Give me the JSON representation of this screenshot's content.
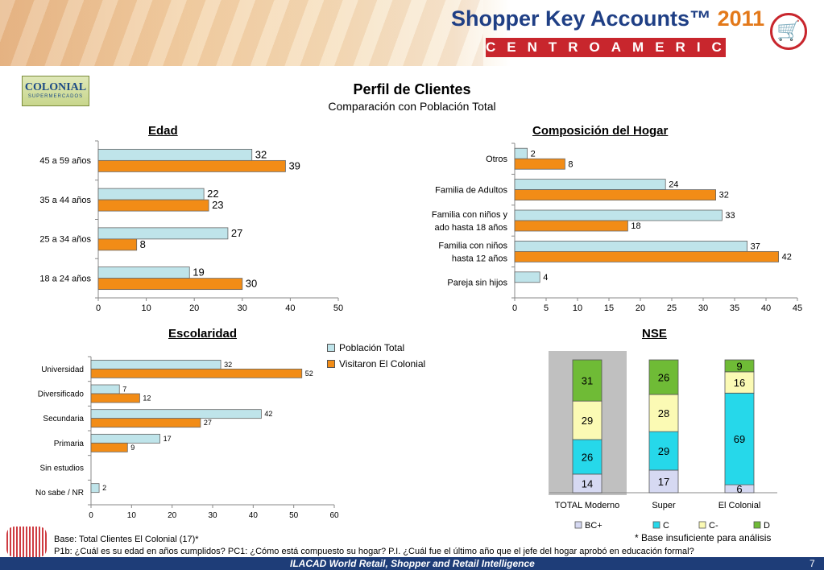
{
  "header": {
    "brand": "Shopper Key Accounts™",
    "year": "2011",
    "subtitle": "CENTROAMERICA"
  },
  "logo": {
    "name": "COLONIAL",
    "tagline": "SUPERMERCADOS"
  },
  "page": {
    "title": "Perfil de Clientes",
    "subtitle": "Comparación con Población Total"
  },
  "legend": {
    "series": [
      "Población Total",
      "Visitaron El Colonial"
    ]
  },
  "colors": {
    "poblacion": "#bfe4ea",
    "visitaron": "#f28c16",
    "bcplus": "#d6d9f2",
    "c": "#26d8ea",
    "cminus": "#fbfab4",
    "d": "#6fbb36"
  },
  "chart_data": [
    {
      "id": "edad",
      "type": "bar",
      "orientation": "horizontal",
      "title": "Edad",
      "categories": [
        "45 a 59 años",
        "35 a 44 años",
        "25 a 34 años",
        "18 a 24 años"
      ],
      "series": [
        {
          "name": "Población Total",
          "values": [
            32,
            22,
            27,
            19
          ]
        },
        {
          "name": "Visitaron El Colonial",
          "values": [
            39,
            23,
            8,
            30
          ]
        }
      ],
      "xlim": [
        0,
        50
      ],
      "ticks": [
        "0",
        "10",
        "20",
        "30",
        "40",
        "50"
      ]
    },
    {
      "id": "hogar",
      "type": "bar",
      "orientation": "horizontal",
      "title": "Composición del Hogar",
      "categories": [
        [
          "Otros"
        ],
        [
          "Familia de Adultos"
        ],
        [
          "Familia con niños y",
          "ado hasta 18 años"
        ],
        [
          "Familia con niños",
          "hasta 12 años"
        ],
        [
          "Pareja sin hijos"
        ]
      ],
      "series": [
        {
          "name": "Población Total",
          "values": [
            2,
            24,
            33,
            37,
            4
          ]
        },
        {
          "name": "Visitaron El Colonial",
          "values": [
            8,
            32,
            18,
            42,
            null
          ]
        }
      ],
      "xlim": [
        0,
        45
      ],
      "ticks": [
        "0",
        "5",
        "10",
        "15",
        "20",
        "25",
        "30",
        "35",
        "40",
        "45"
      ]
    },
    {
      "id": "escolaridad",
      "type": "bar",
      "orientation": "horizontal",
      "title": "Escolaridad",
      "categories": [
        "Universidad",
        "Diversificado",
        "Secundaria",
        "Primaria",
        "Sin estudios",
        "No sabe / NR"
      ],
      "series": [
        {
          "name": "Población Total",
          "values": [
            32,
            7,
            42,
            17,
            null,
            2
          ]
        },
        {
          "name": "Visitaron El Colonial",
          "values": [
            52,
            12,
            27,
            9,
            null,
            null
          ]
        }
      ],
      "xlim": [
        0,
        60
      ],
      "ticks": [
        "0",
        "10",
        "20",
        "30",
        "40",
        "50",
        "60"
      ]
    },
    {
      "id": "nse",
      "type": "bar",
      "stacked": true,
      "title": "NSE",
      "categories": [
        "TOTAL Moderno",
        "Super",
        "El Colonial"
      ],
      "series": [
        {
          "name": "BC+",
          "values": [
            14,
            17,
            6
          ]
        },
        {
          "name": "C",
          "values": [
            26,
            29,
            69
          ]
        },
        {
          "name": "C-",
          "values": [
            29,
            28,
            16
          ]
        },
        {
          "name": "D",
          "values": [
            31,
            26,
            9
          ]
        }
      ]
    }
  ],
  "footer": {
    "base": "Base: Total Clientes El Colonial (17)*",
    "question": "P1b: ¿Cuál es su edad en años cumplidos? PC1: ¿Cómo está compuesto su hogar? P.I. ¿Cuál fue el último año que el jefe del hogar aprobó en educación formal?",
    "note": "* Base insuficiente para análisis",
    "bar_text": "ILACAD World Retail, Shopper and Retail Intelligence",
    "page_number": "7"
  }
}
